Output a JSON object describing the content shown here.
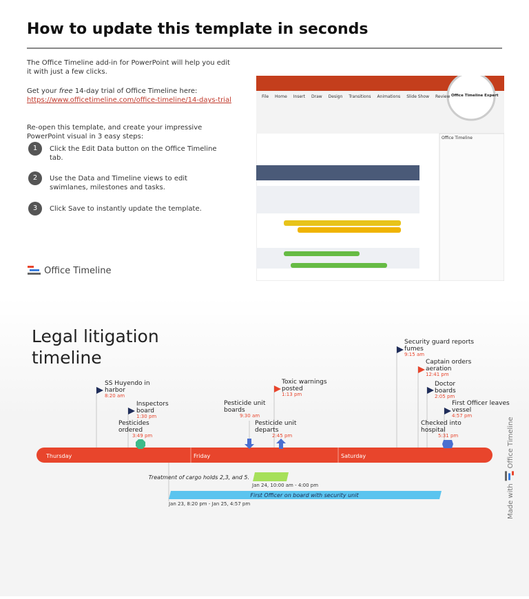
{
  "header": {
    "title": "How to update this template in seconds"
  },
  "intro": {
    "paragraph": "The Office Timeline add-in for PowerPoint will help you edit it with just a few clicks.",
    "trial_prefix": "Get your",
    "trial_emphasis": "free",
    "trial_suffix": "14-day trial of Office Timeline here:",
    "link": "https://www.officetimeline.com/office-timeline/14-days-trial",
    "reopen": "Re-open this template, and create your impressive PowerPoint visual in 3 easy steps:"
  },
  "steps": [
    {
      "number": "1",
      "text": "Click the Edit Data button on the Office Timeline tab."
    },
    {
      "number": "2",
      "text": "Use the Data and Timeline views to edit swimlanes, milestones and tasks."
    },
    {
      "number": "3",
      "text": "Click Save to instantly update the template."
    }
  ],
  "logo": {
    "text": "Office Timeline"
  },
  "screenshot": {
    "tabs": [
      "File",
      "Home",
      "Insert",
      "Draw",
      "Design",
      "Transitions",
      "Animations",
      "Slide Show",
      "Review"
    ],
    "callout": "Office Timeline Expert",
    "pane_title": "Office Timeline"
  },
  "timeline": {
    "title_lines": [
      "Legal litigation",
      "timeline"
    ],
    "days": [
      "Thursday",
      "Friday",
      "Saturday"
    ],
    "milestones": [
      {
        "label_lines": [
          "SS Huyendo in",
          "harbor"
        ],
        "time": "8:20 am"
      },
      {
        "label_lines": [
          "Inspectors",
          "board"
        ],
        "time": "1:30 pm"
      },
      {
        "label_lines": [
          "Pesticides",
          "ordered"
        ],
        "time": "3:49 pm"
      },
      {
        "label_lines": [
          "Pesticide unit",
          "boards"
        ],
        "time": "9:30 am"
      },
      {
        "label_lines": [
          "Toxic warnings",
          "posted"
        ],
        "time": "1:13 pm"
      },
      {
        "label_lines": [
          "Pesticide unit",
          "departs"
        ],
        "time": "2:45 pm"
      },
      {
        "label_lines": [
          "Security guard reports",
          "fumes"
        ],
        "time": "9:15 am"
      },
      {
        "label_lines": [
          "Captain orders",
          "aeration"
        ],
        "time": "12:41 pm"
      },
      {
        "label_lines": [
          "Doctor",
          "boards"
        ],
        "time": "2:05 pm"
      },
      {
        "label_lines": [
          "First Officer leaves",
          "vessel"
        ],
        "time": "4:57 pm"
      },
      {
        "label_lines": [
          "Checked into",
          "hospital"
        ],
        "time": "5:31 pm"
      }
    ],
    "tasks": [
      {
        "label": "Treatment of cargo holds 2,3, and 5.",
        "dates": "Jan 24, 10:00 am - 4:00 pm"
      },
      {
        "label": "First Officer on board with security unit",
        "dates": "Jan 23, 8:20 pm - Jan 25, 4:57 pm"
      }
    ],
    "watermark": "Made with",
    "brand": "Office Timeline"
  }
}
